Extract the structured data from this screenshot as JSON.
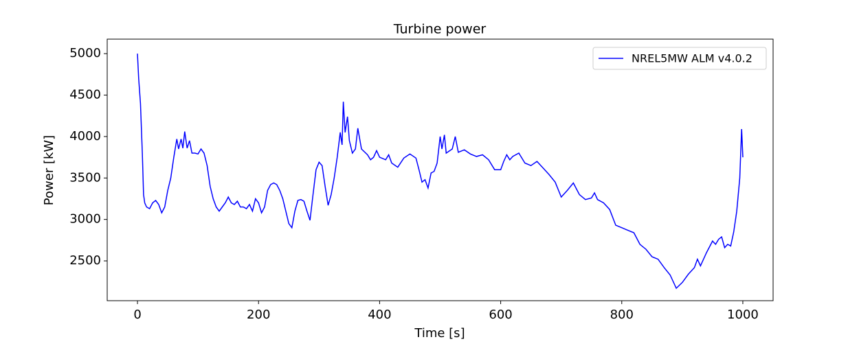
{
  "chart_data": {
    "type": "line",
    "title": "Turbine power",
    "x_label": "Time [s]",
    "y_label": "Power [kW]",
    "x": [
      0,
      2,
      5,
      8,
      10,
      12,
      15,
      20,
      25,
      30,
      35,
      40,
      45,
      50,
      55,
      60,
      65,
      68,
      72,
      75,
      78,
      82,
      86,
      90,
      95,
      100,
      105,
      110,
      115,
      120,
      125,
      130,
      135,
      140,
      145,
      150,
      155,
      160,
      165,
      170,
      175,
      180,
      185,
      190,
      195,
      200,
      205,
      210,
      215,
      220,
      225,
      230,
      235,
      240,
      245,
      250,
      255,
      260,
      265,
      270,
      275,
      280,
      285,
      290,
      295,
      300,
      305,
      310,
      315,
      320,
      325,
      330,
      335,
      338,
      340,
      343,
      347,
      350,
      355,
      360,
      364,
      370,
      380,
      385,
      390,
      395,
      400,
      410,
      415,
      420,
      430,
      440,
      450,
      460,
      465,
      470,
      475,
      480,
      485,
      490,
      495,
      500,
      503,
      507,
      510,
      520,
      525,
      530,
      540,
      550,
      560,
      570,
      580,
      590,
      600,
      605,
      610,
      615,
      620,
      630,
      640,
      650,
      660,
      670,
      680,
      690,
      700,
      710,
      720,
      730,
      740,
      750,
      755,
      760,
      770,
      780,
      790,
      800,
      810,
      820,
      830,
      840,
      850,
      860,
      870,
      880,
      890,
      900,
      910,
      920,
      925,
      930,
      940,
      950,
      955,
      960,
      965,
      970,
      975,
      980,
      985,
      990,
      995,
      998,
      1000
    ],
    "series": [
      {
        "name": "NREL5MW ALM v4.0.2",
        "color": "#0000ff",
        "values": [
          5000,
          4700,
          4400,
          3800,
          3300,
          3200,
          3150,
          3130,
          3200,
          3230,
          3180,
          3080,
          3150,
          3350,
          3500,
          3750,
          3970,
          3850,
          3970,
          3860,
          4060,
          3860,
          3950,
          3800,
          3800,
          3790,
          3850,
          3800,
          3650,
          3400,
          3250,
          3150,
          3100,
          3150,
          3200,
          3270,
          3200,
          3180,
          3220,
          3150,
          3150,
          3130,
          3180,
          3100,
          3250,
          3200,
          3080,
          3150,
          3350,
          3420,
          3440,
          3420,
          3350,
          3250,
          3100,
          2950,
          2900,
          3100,
          3230,
          3240,
          3220,
          3100,
          2990,
          3300,
          3600,
          3690,
          3650,
          3400,
          3170,
          3300,
          3500,
          3750,
          4050,
          3900,
          4420,
          4050,
          4240,
          3950,
          3800,
          3850,
          4100,
          3850,
          3780,
          3720,
          3750,
          3830,
          3750,
          3720,
          3780,
          3680,
          3630,
          3740,
          3790,
          3740,
          3600,
          3450,
          3480,
          3380,
          3560,
          3580,
          3680,
          4000,
          3850,
          4020,
          3800,
          3850,
          4000,
          3810,
          3840,
          3790,
          3760,
          3780,
          3720,
          3600,
          3600,
          3700,
          3780,
          3720,
          3760,
          3800,
          3680,
          3650,
          3700,
          3620,
          3540,
          3450,
          3270,
          3350,
          3440,
          3300,
          3240,
          3260,
          3320,
          3240,
          3200,
          3120,
          2930,
          2900,
          2870,
          2840,
          2700,
          2640,
          2550,
          2520,
          2420,
          2330,
          2170,
          2240,
          2340,
          2420,
          2520,
          2440,
          2600,
          2740,
          2700,
          2760,
          2790,
          2660,
          2700,
          2680,
          2850,
          3100,
          3500,
          4090,
          3750
        ]
      }
    ],
    "xlim": [
      -50,
      1050
    ],
    "ylim": [
      2020,
      5175
    ],
    "xticks": [
      0,
      200,
      400,
      600,
      800,
      1000
    ],
    "yticks": [
      2500,
      3000,
      3500,
      4000,
      4500,
      5000
    ],
    "legend": "upper right"
  }
}
